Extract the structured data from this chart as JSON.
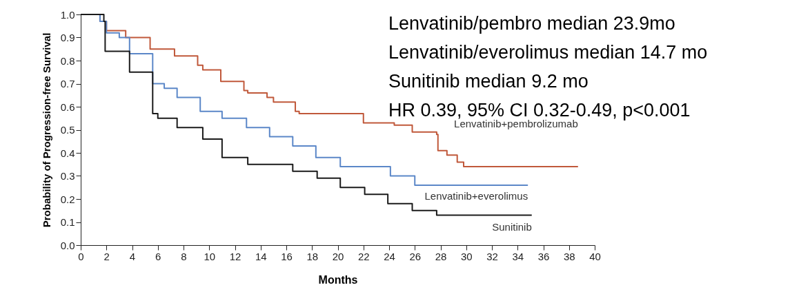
{
  "chart_data": {
    "type": "step",
    "xlabel": "Months",
    "ylabel": "Probability of Progression-free Survival",
    "xlim": [
      0,
      40
    ],
    "ylim": [
      0,
      1
    ],
    "xticks": [
      0,
      2,
      4,
      6,
      8,
      10,
      12,
      14,
      16,
      18,
      20,
      22,
      24,
      26,
      28,
      30,
      32,
      34,
      36,
      38,
      40
    ],
    "yticks": [
      {
        "value": 0,
        "label": "0.0"
      },
      0.1,
      0.2,
      0.3,
      0.4,
      0.5,
      0.6,
      0.7,
      0.8,
      0.9,
      {
        "value": 1,
        "label": "1.0"
      }
    ],
    "grid": false,
    "marker": "none",
    "line_style": "solid",
    "annotations": [
      "Lenvatinib/pembro median 23.9mo",
      "Lenvatinib/everolimus median 14.7 mo",
      "Sunitinib median 9.2 mo",
      "HR 0.39, 95% CI 0.32-0.49, p<0.001"
    ],
    "series": [
      {
        "name": "Lenvatinib+pembrolizumab",
        "color": "#c0583a",
        "x": [
          0,
          1.5,
          2,
          3.5,
          5.4,
          7.3,
          9.1,
          9.5,
          10.9,
          12.7,
          13,
          14.5,
          15,
          16.7,
          17,
          22,
          24.4,
          25.8,
          27.7,
          27.8,
          28.5,
          29.3,
          29.8,
          38.7
        ],
        "values": [
          1,
          0.97,
          0.93,
          0.9,
          0.85,
          0.82,
          0.78,
          0.76,
          0.71,
          0.67,
          0.66,
          0.64,
          0.62,
          0.58,
          0.57,
          0.53,
          0.52,
          0.49,
          0.48,
          0.41,
          0.39,
          0.36,
          0.34,
          0.34
        ]
      },
      {
        "name": "Lenvatinib+everolimus",
        "color": "#5b87c8",
        "x": [
          0,
          1.5,
          2,
          3,
          3.8,
          5.6,
          6.5,
          7.5,
          9.3,
          11,
          12.9,
          14.7,
          16.5,
          18.3,
          20.2,
          24.1,
          26,
          34.8
        ],
        "values": [
          1,
          0.97,
          0.92,
          0.9,
          0.83,
          0.7,
          0.68,
          0.64,
          0.58,
          0.55,
          0.51,
          0.47,
          0.43,
          0.38,
          0.34,
          0.3,
          0.26,
          0.26
        ]
      },
      {
        "name": "Sunitinib",
        "color": "#1a1a1a",
        "x": [
          0,
          1.8,
          1.9,
          3.8,
          5.6,
          6,
          7.5,
          9.5,
          11,
          13,
          16.5,
          18.4,
          20.2,
          22.1,
          23.9,
          25.8,
          27.7,
          35.1
        ],
        "values": [
          1,
          0.97,
          0.84,
          0.75,
          0.57,
          0.55,
          0.51,
          0.46,
          0.38,
          0.35,
          0.32,
          0.29,
          0.25,
          0.22,
          0.18,
          0.15,
          0.13,
          0.13
        ]
      }
    ]
  }
}
